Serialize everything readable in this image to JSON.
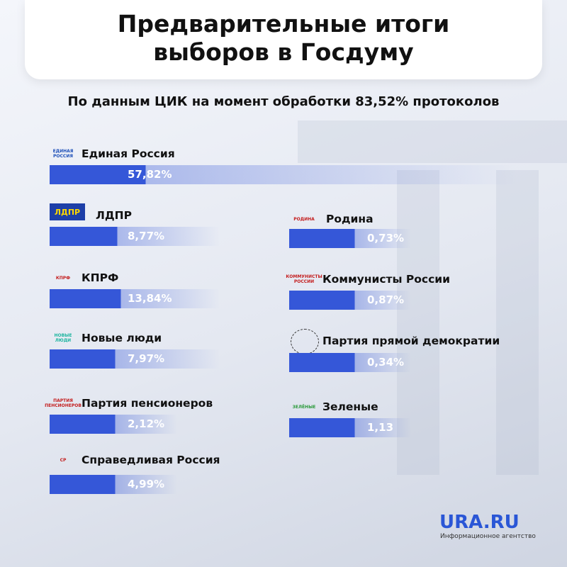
{
  "header": {
    "title_lines": [
      "Предварительные итоги",
      "выборов в Госдуму"
    ],
    "subtitle": "По данным ЦИК на момент обработки 83,52% протоколов"
  },
  "left": [
    {
      "name": "Единая Россия",
      "result": "57,82%",
      "logo": "ЕДИНАЯ РОССИЯ"
    },
    {
      "name": "ЛДПР",
      "result": "8,77%",
      "logo": "ЛДПР"
    },
    {
      "name": "КПРФ",
      "result": "13,84%",
      "logo": "КПРФ"
    },
    {
      "name": "Новые люди",
      "result": "7,97%",
      "logo": "НОВЫЕ ЛЮДИ"
    },
    {
      "name": "Партия пенсионеров",
      "result": "2,12%",
      "logo": "ПАРТИЯ ПЕНСИОНЕРОВ"
    },
    {
      "name": "Справедливая Россия",
      "result": "4,99%",
      "logo": "СР"
    }
  ],
  "right": [
    {
      "name": "Родина",
      "result": "0,73%",
      "logo": "РОДИНА"
    },
    {
      "name": "Коммунисты России",
      "result": "0,87%",
      "logo": "КОММУНИСТЫ РОССИИ"
    },
    {
      "name": "Партия прямой демократии",
      "result": "0,34%"
    },
    {
      "name": "Зеленые",
      "result": "1,13",
      "logo": "ЗЕЛЁНЫЕ"
    }
  ],
  "brand": {
    "name": "URA.RU",
    "tagline": "Информационное агентство"
  }
}
